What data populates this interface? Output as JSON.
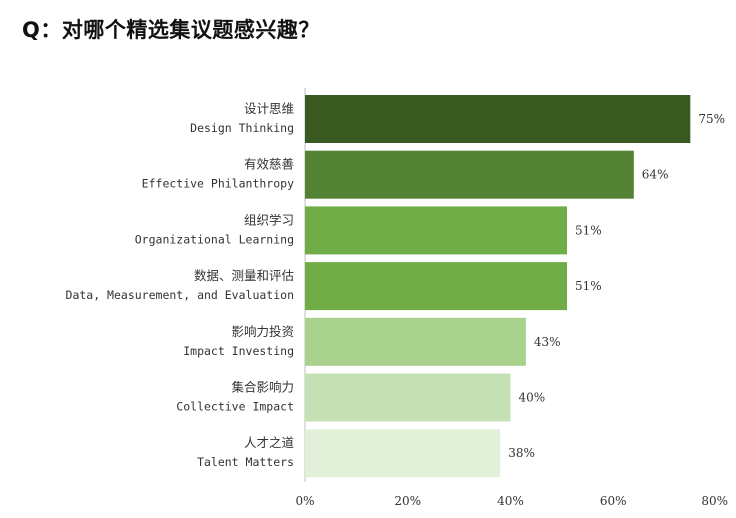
{
  "question": "Q：对哪个精选集议题感兴趣？",
  "chart_data": {
    "type": "bar",
    "orientation": "horizontal",
    "categories": [
      {
        "zh": "设计思维",
        "en": "Design Thinking"
      },
      {
        "zh": "有效慈善",
        "en": "Effective Philanthropy"
      },
      {
        "zh": "组织学习",
        "en": "Organizational Learning"
      },
      {
        "zh": "数据、测量和评估",
        "en": "Data, Measurement, and Evaluation"
      },
      {
        "zh": "影响力投资",
        "en": "Impact Investing"
      },
      {
        "zh": "集合影响力",
        "en": "Collective Impact"
      },
      {
        "zh": "人才之道",
        "en": "Talent Matters"
      }
    ],
    "values": [
      75,
      64,
      51,
      51,
      43,
      40,
      38
    ],
    "value_labels": [
      "75%",
      "64%",
      "51%",
      "51%",
      "43%",
      "40%",
      "38%"
    ],
    "bar_colors": [
      "#3b5a22",
      "#548235",
      "#70ad47",
      "#70ad47",
      "#a9d18e",
      "#c5e0b4",
      "#e2efd9"
    ],
    "xlim": [
      0,
      80
    ],
    "x_ticks": [
      0,
      20,
      40,
      60,
      80
    ],
    "x_tick_labels": [
      "0%",
      "20%",
      "40%",
      "60%",
      "80%"
    ],
    "grid": false,
    "legend": "none"
  }
}
